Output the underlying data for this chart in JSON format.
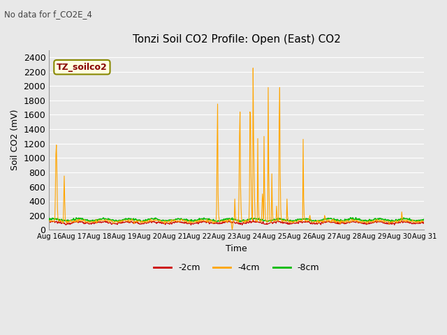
{
  "title": "Tonzi Soil CO2 Profile: Open (East) CO2",
  "subtitle": "No data for f_CO2E_4",
  "ylabel": "Soil CO2 (mV)",
  "xlabel": "Time",
  "legend_label": "TZ_soilco2",
  "series_labels": [
    "-2cm",
    "-4cm",
    "-8cm"
  ],
  "series_colors": [
    "#cc0000",
    "#ffa500",
    "#00bb00"
  ],
  "ylim": [
    0,
    2500
  ],
  "yticks": [
    0,
    200,
    400,
    600,
    800,
    1000,
    1200,
    1400,
    1600,
    1800,
    2000,
    2200,
    2400
  ],
  "n_days": 15,
  "date_start": 16,
  "background_color": "#e8e8e8",
  "fig_background": "#e8e8e8",
  "grid_color": "#ffffff"
}
